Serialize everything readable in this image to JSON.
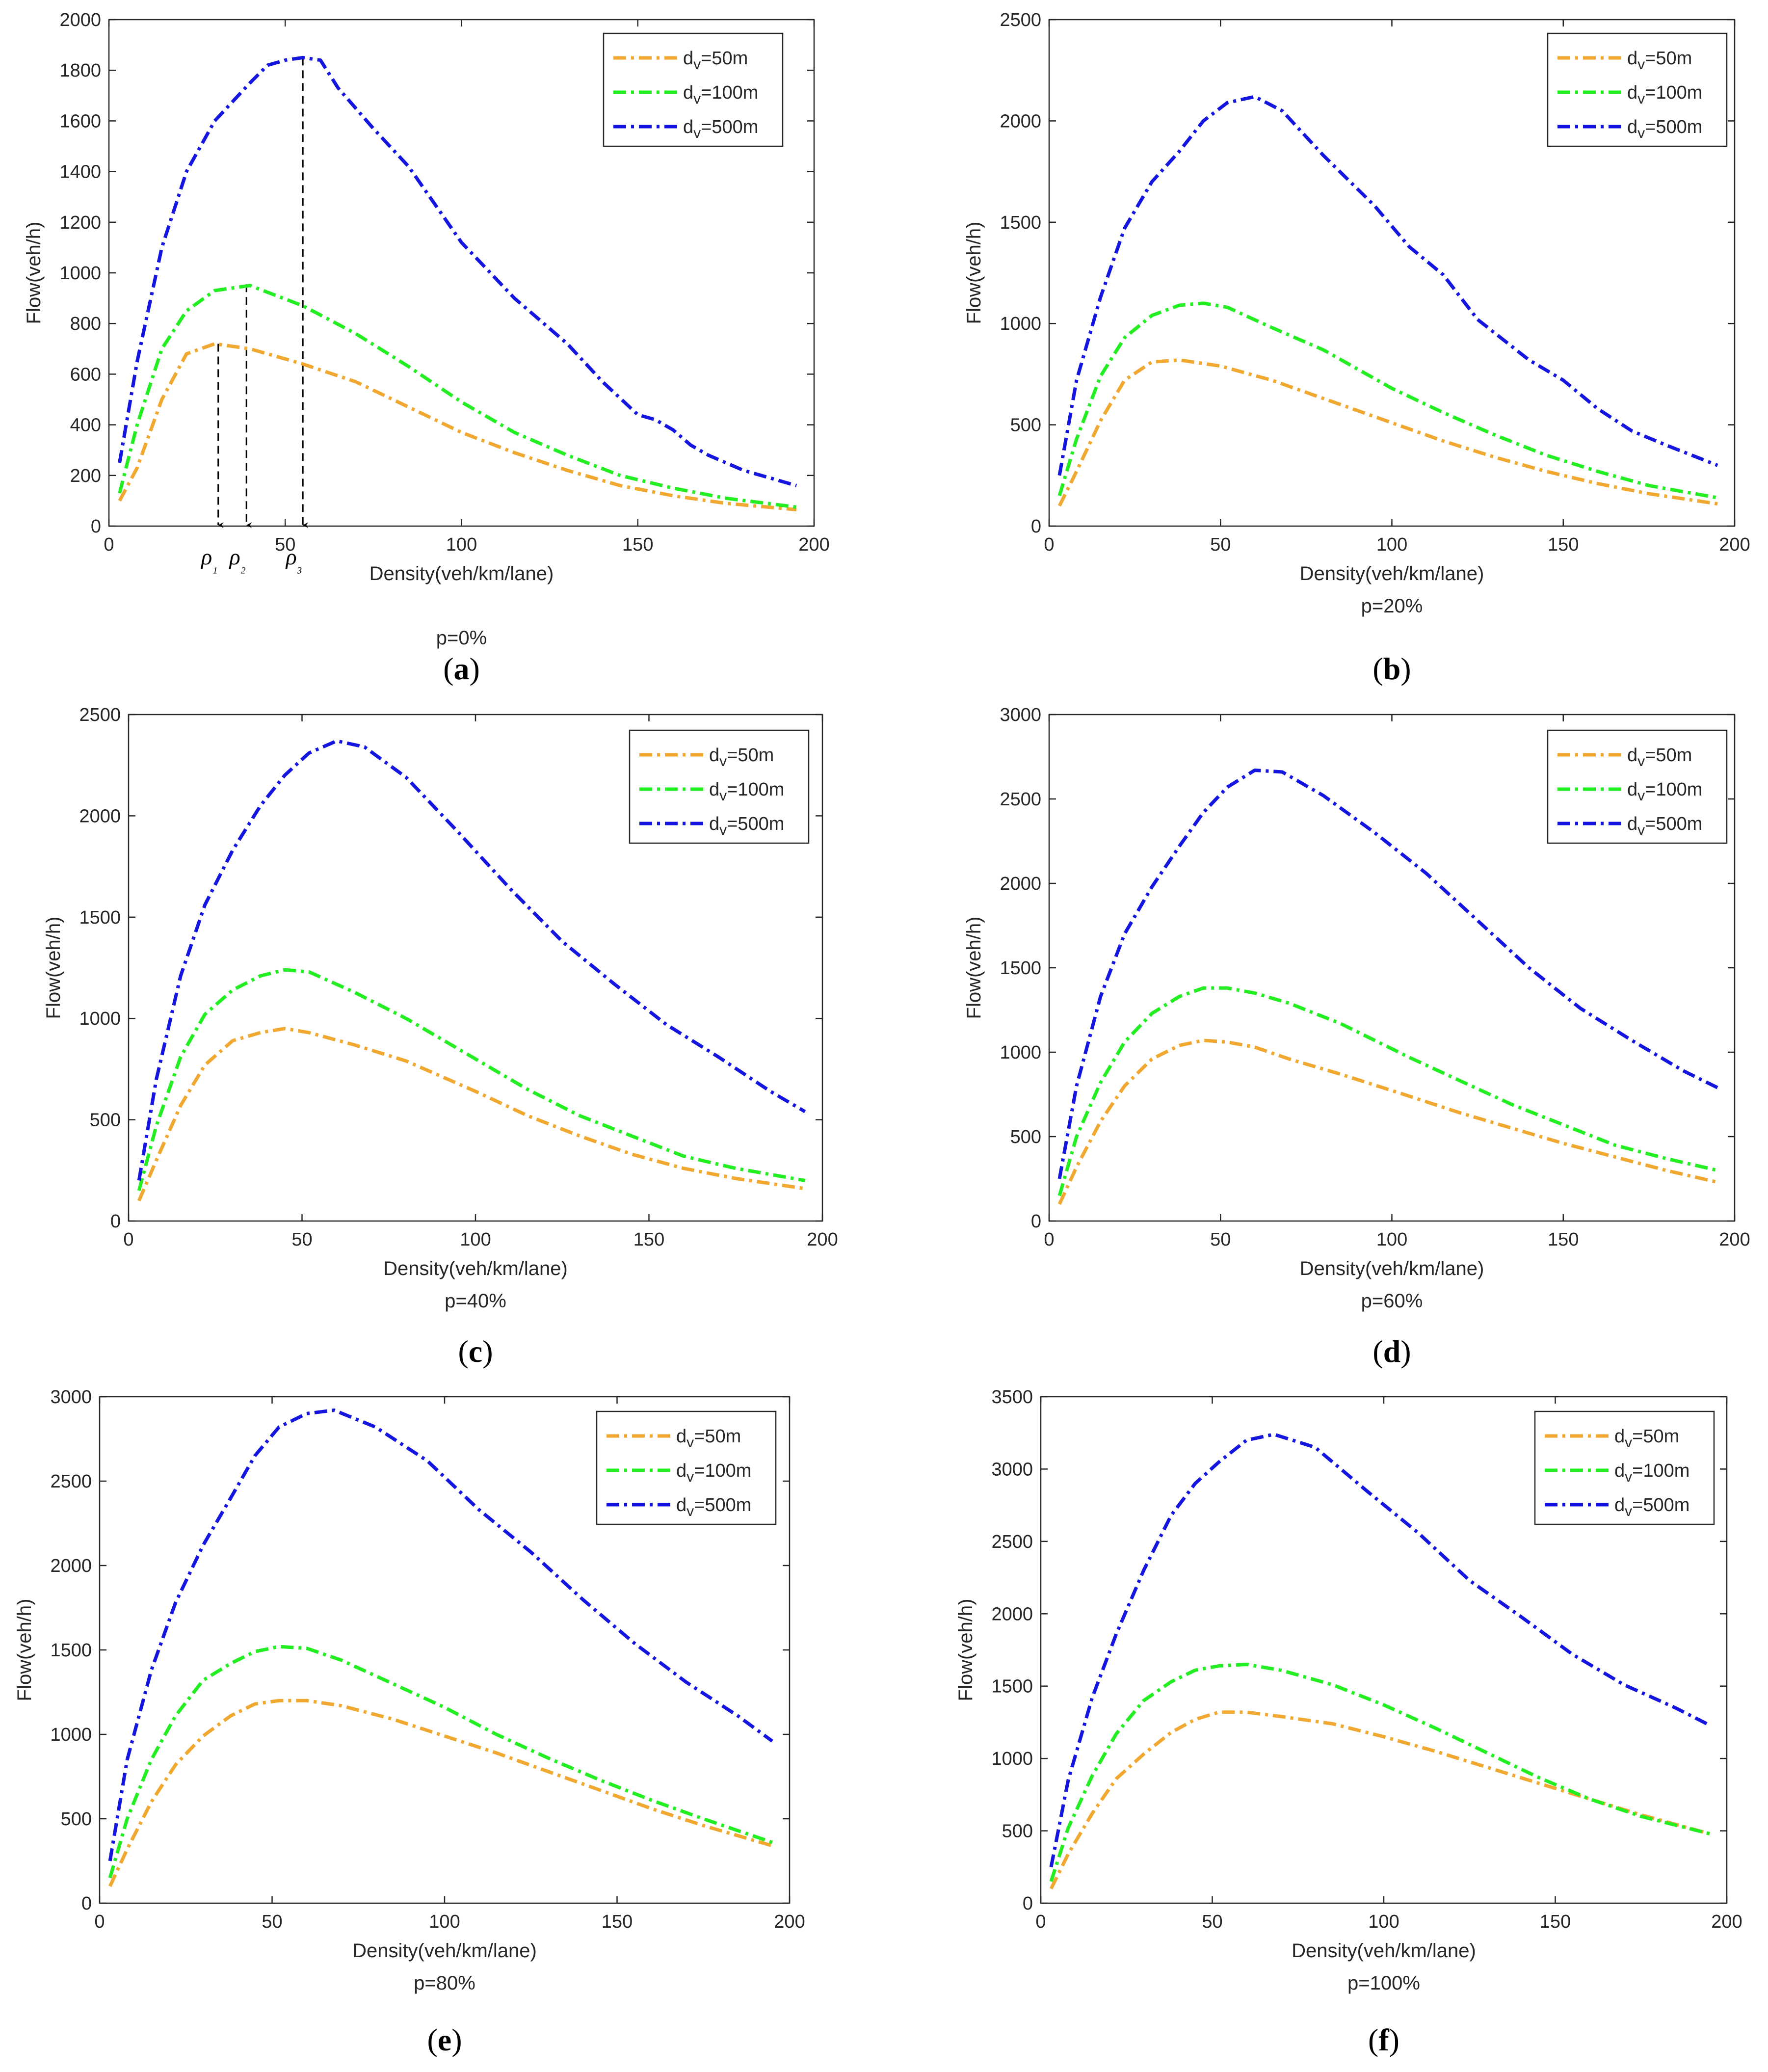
{
  "colors": {
    "d50": "#F0A830",
    "d100": "#22EE22",
    "d500": "#1515E0",
    "axis": "#262626"
  },
  "xlabel": "Density(veh/km/lane)",
  "ylabel": "Flow(veh/h)",
  "legend_labels": [
    "dᵥ=50m",
    "dᵥ=100m",
    "dᵥ=500m"
  ],
  "rho_annotations": [
    "ρ₁",
    "ρ₂",
    "ρ₃"
  ],
  "chart_data": [
    {
      "panel": "(a)",
      "subtitle": "p=0%",
      "type": "line",
      "xlim": [
        0,
        200
      ],
      "ylim": [
        0,
        2000
      ],
      "xticks": [
        0,
        50,
        100,
        150,
        200
      ],
      "yticks": [
        0,
        200,
        400,
        600,
        800,
        1000,
        1200,
        1400,
        1600,
        1800,
        2000
      ],
      "legend_position": "top-right",
      "series": [
        {
          "name": "dᵥ=50m",
          "x": [
            3,
            8,
            15,
            22,
            30,
            40,
            55,
            70,
            85,
            100,
            115,
            130,
            145,
            160,
            175,
            195
          ],
          "y": [
            100,
            230,
            500,
            680,
            720,
            700,
            640,
            570,
            470,
            370,
            290,
            220,
            160,
            120,
            90,
            65
          ]
        },
        {
          "name": "dᵥ=100m",
          "x": [
            3,
            8,
            15,
            22,
            30,
            40,
            55,
            70,
            85,
            100,
            115,
            130,
            145,
            160,
            175,
            195
          ],
          "y": [
            130,
            400,
            700,
            850,
            930,
            950,
            870,
            760,
            630,
            490,
            370,
            280,
            200,
            150,
            110,
            75
          ]
        },
        {
          "name": "dᵥ=500m",
          "x": [
            3,
            8,
            15,
            22,
            30,
            40,
            45,
            50,
            55,
            60,
            65,
            75,
            85,
            100,
            115,
            130,
            140,
            150,
            155,
            160,
            165,
            170,
            180,
            190,
            195
          ],
          "y": [
            250,
            650,
            1100,
            1400,
            1600,
            1750,
            1820,
            1840,
            1850,
            1840,
            1730,
            1570,
            1420,
            1120,
            900,
            720,
            570,
            440,
            420,
            380,
            320,
            280,
            220,
            180,
            160
          ]
        }
      ],
      "annotations": [
        {
          "label": "ρ₁",
          "x": 31,
          "y_from": 720
        },
        {
          "label": "ρ₂",
          "x": 39,
          "y_from": 955
        },
        {
          "label": "ρ₃",
          "x": 55,
          "y_from": 1850
        }
      ]
    },
    {
      "panel": "(b)",
      "subtitle": "p=20%",
      "type": "line",
      "xlim": [
        0,
        200
      ],
      "ylim": [
        0,
        2500
      ],
      "xticks": [
        0,
        50,
        100,
        150,
        200
      ],
      "yticks": [
        0,
        500,
        1000,
        1500,
        2000,
        2500
      ],
      "legend_position": "top-right",
      "series": [
        {
          "name": "dᵥ=50m",
          "x": [
            3,
            8,
            15,
            22,
            30,
            38,
            50,
            65,
            80,
            100,
            115,
            130,
            145,
            160,
            175,
            195
          ],
          "y": [
            100,
            270,
            520,
            720,
            810,
            820,
            790,
            720,
            630,
            510,
            420,
            340,
            270,
            210,
            160,
            110
          ]
        },
        {
          "name": "dᵥ=100m",
          "x": [
            3,
            8,
            15,
            22,
            30,
            38,
            45,
            52,
            65,
            80,
            100,
            115,
            130,
            145,
            160,
            175,
            195
          ],
          "y": [
            150,
            430,
            740,
            930,
            1040,
            1090,
            1100,
            1080,
            980,
            870,
            680,
            560,
            450,
            350,
            270,
            200,
            140
          ]
        },
        {
          "name": "dᵥ=500m",
          "x": [
            3,
            8,
            15,
            22,
            30,
            38,
            45,
            52,
            60,
            68,
            80,
            95,
            105,
            115,
            125,
            140,
            150,
            160,
            170,
            180,
            195
          ],
          "y": [
            250,
            720,
            1130,
            1470,
            1700,
            1850,
            2000,
            2090,
            2120,
            2050,
            1830,
            1580,
            1380,
            1240,
            1020,
            820,
            720,
            580,
            470,
            400,
            300
          ]
        }
      ]
    },
    {
      "panel": "(c)",
      "subtitle": "p=40%",
      "type": "line",
      "xlim": [
        0,
        200
      ],
      "ylim": [
        0,
        2500
      ],
      "xticks": [
        0,
        50,
        100,
        150,
        200
      ],
      "yticks": [
        0,
        500,
        1000,
        1500,
        2000,
        2500
      ],
      "legend_position": "top-right",
      "series": [
        {
          "name": "dᵥ=50m",
          "x": [
            3,
            8,
            15,
            22,
            30,
            38,
            45,
            52,
            65,
            80,
            100,
            115,
            130,
            145,
            160,
            175,
            195
          ],
          "y": [
            100,
            300,
            570,
            770,
            890,
            930,
            950,
            930,
            870,
            790,
            640,
            520,
            420,
            330,
            260,
            210,
            160
          ]
        },
        {
          "name": "dᵥ=100m",
          "x": [
            3,
            8,
            15,
            22,
            30,
            38,
            45,
            52,
            65,
            80,
            100,
            115,
            130,
            145,
            160,
            175,
            195
          ],
          "y": [
            150,
            470,
            810,
            1020,
            1140,
            1210,
            1240,
            1230,
            1130,
            1000,
            800,
            650,
            520,
            420,
            320,
            260,
            200
          ]
        },
        {
          "name": "dᵥ=500m",
          "x": [
            3,
            8,
            15,
            22,
            30,
            38,
            45,
            52,
            60,
            68,
            80,
            95,
            110,
            125,
            140,
            155,
            170,
            185,
            195
          ],
          "y": [
            200,
            700,
            1210,
            1560,
            1830,
            2050,
            2200,
            2310,
            2370,
            2340,
            2190,
            1920,
            1640,
            1380,
            1170,
            970,
            810,
            640,
            540
          ]
        }
      ]
    },
    {
      "panel": "(d)",
      "subtitle": "p=60%",
      "type": "line",
      "xlim": [
        0,
        200
      ],
      "ylim": [
        0,
        3000
      ],
      "xticks": [
        0,
        50,
        100,
        150,
        200
      ],
      "yticks": [
        0,
        500,
        1000,
        1500,
        2000,
        2500,
        3000
      ],
      "legend_position": "top-right",
      "series": [
        {
          "name": "dᵥ=50m",
          "x": [
            3,
            8,
            15,
            22,
            30,
            38,
            45,
            52,
            60,
            70,
            85,
            105,
            120,
            135,
            150,
            165,
            180,
            195
          ],
          "y": [
            100,
            320,
            590,
            800,
            960,
            1040,
            1070,
            1060,
            1030,
            960,
            870,
            740,
            640,
            550,
            460,
            380,
            300,
            230
          ]
        },
        {
          "name": "dᵥ=100m",
          "x": [
            3,
            8,
            15,
            22,
            30,
            38,
            45,
            52,
            60,
            70,
            85,
            105,
            120,
            135,
            150,
            165,
            180,
            195
          ],
          "y": [
            150,
            500,
            820,
            1060,
            1230,
            1330,
            1380,
            1380,
            1350,
            1290,
            1170,
            970,
            830,
            690,
            570,
            450,
            370,
            300
          ]
        },
        {
          "name": "dᵥ=500m",
          "x": [
            3,
            8,
            15,
            22,
            30,
            38,
            45,
            52,
            60,
            68,
            80,
            95,
            110,
            125,
            140,
            155,
            170,
            185,
            195
          ],
          "y": [
            250,
            800,
            1330,
            1700,
            1980,
            2220,
            2420,
            2570,
            2670,
            2660,
            2520,
            2300,
            2060,
            1780,
            1500,
            1260,
            1070,
            890,
            790
          ]
        }
      ]
    },
    {
      "panel": "(e)",
      "subtitle": "p=80%",
      "type": "line",
      "xlim": [
        0,
        200
      ],
      "ylim": [
        0,
        3000
      ],
      "xticks": [
        0,
        50,
        100,
        150,
        200
      ],
      "yticks": [
        0,
        500,
        1000,
        1500,
        2000,
        2500,
        3000
      ],
      "legend_position": "top-right",
      "series": [
        {
          "name": "dᵥ=50m",
          "x": [
            3,
            8,
            15,
            22,
            30,
            38,
            45,
            52,
            60,
            70,
            85,
            100,
            115,
            130,
            145,
            160,
            175,
            195
          ],
          "y": [
            100,
            320,
            600,
            820,
            990,
            1110,
            1180,
            1200,
            1200,
            1170,
            1090,
            990,
            890,
            780,
            670,
            560,
            460,
            340
          ]
        },
        {
          "name": "dᵥ=100m",
          "x": [
            3,
            8,
            15,
            22,
            30,
            38,
            45,
            52,
            60,
            70,
            85,
            100,
            115,
            130,
            145,
            160,
            175,
            195
          ],
          "y": [
            150,
            500,
            850,
            1110,
            1320,
            1420,
            1490,
            1520,
            1510,
            1440,
            1300,
            1160,
            1000,
            860,
            730,
            610,
            500,
            360
          ]
        },
        {
          "name": "dᵥ=500m",
          "x": [
            3,
            8,
            15,
            22,
            30,
            38,
            45,
            52,
            60,
            68,
            80,
            95,
            110,
            125,
            140,
            155,
            170,
            185,
            195
          ],
          "y": [
            250,
            850,
            1380,
            1780,
            2120,
            2400,
            2650,
            2820,
            2900,
            2920,
            2820,
            2620,
            2330,
            2080,
            1800,
            1540,
            1310,
            1110,
            960
          ]
        }
      ]
    },
    {
      "panel": "(f)",
      "subtitle": "p=100%",
      "type": "line",
      "xlim": [
        0,
        200
      ],
      "ylim": [
        0,
        3500
      ],
      "xticks": [
        0,
        50,
        100,
        150,
        200
      ],
      "yticks": [
        0,
        500,
        1000,
        1500,
        2000,
        2500,
        3000,
        3500
      ],
      "legend_position": "top-right",
      "series": [
        {
          "name": "dᵥ=50m",
          "x": [
            3,
            8,
            15,
            22,
            30,
            38,
            45,
            52,
            60,
            70,
            85,
            100,
            115,
            130,
            145,
            160,
            175,
            195
          ],
          "y": [
            100,
            340,
            620,
            860,
            1030,
            1180,
            1270,
            1320,
            1320,
            1290,
            1240,
            1150,
            1050,
            940,
            830,
            720,
            610,
            480
          ]
        },
        {
          "name": "dᵥ=100m",
          "x": [
            3,
            8,
            15,
            22,
            30,
            38,
            45,
            52,
            60,
            70,
            85,
            100,
            115,
            130,
            145,
            160,
            175,
            195
          ],
          "y": [
            150,
            520,
            880,
            1170,
            1400,
            1530,
            1610,
            1640,
            1650,
            1610,
            1510,
            1370,
            1210,
            1040,
            870,
            720,
            600,
            480
          ]
        },
        {
          "name": "dᵥ=500m",
          "x": [
            3,
            8,
            15,
            22,
            30,
            38,
            45,
            52,
            60,
            68,
            80,
            95,
            110,
            125,
            140,
            155,
            170,
            185,
            195
          ],
          "y": [
            250,
            850,
            1420,
            1860,
            2300,
            2680,
            2900,
            3050,
            3200,
            3240,
            3150,
            2850,
            2560,
            2230,
            1980,
            1720,
            1510,
            1350,
            1230
          ]
        }
      ]
    }
  ]
}
